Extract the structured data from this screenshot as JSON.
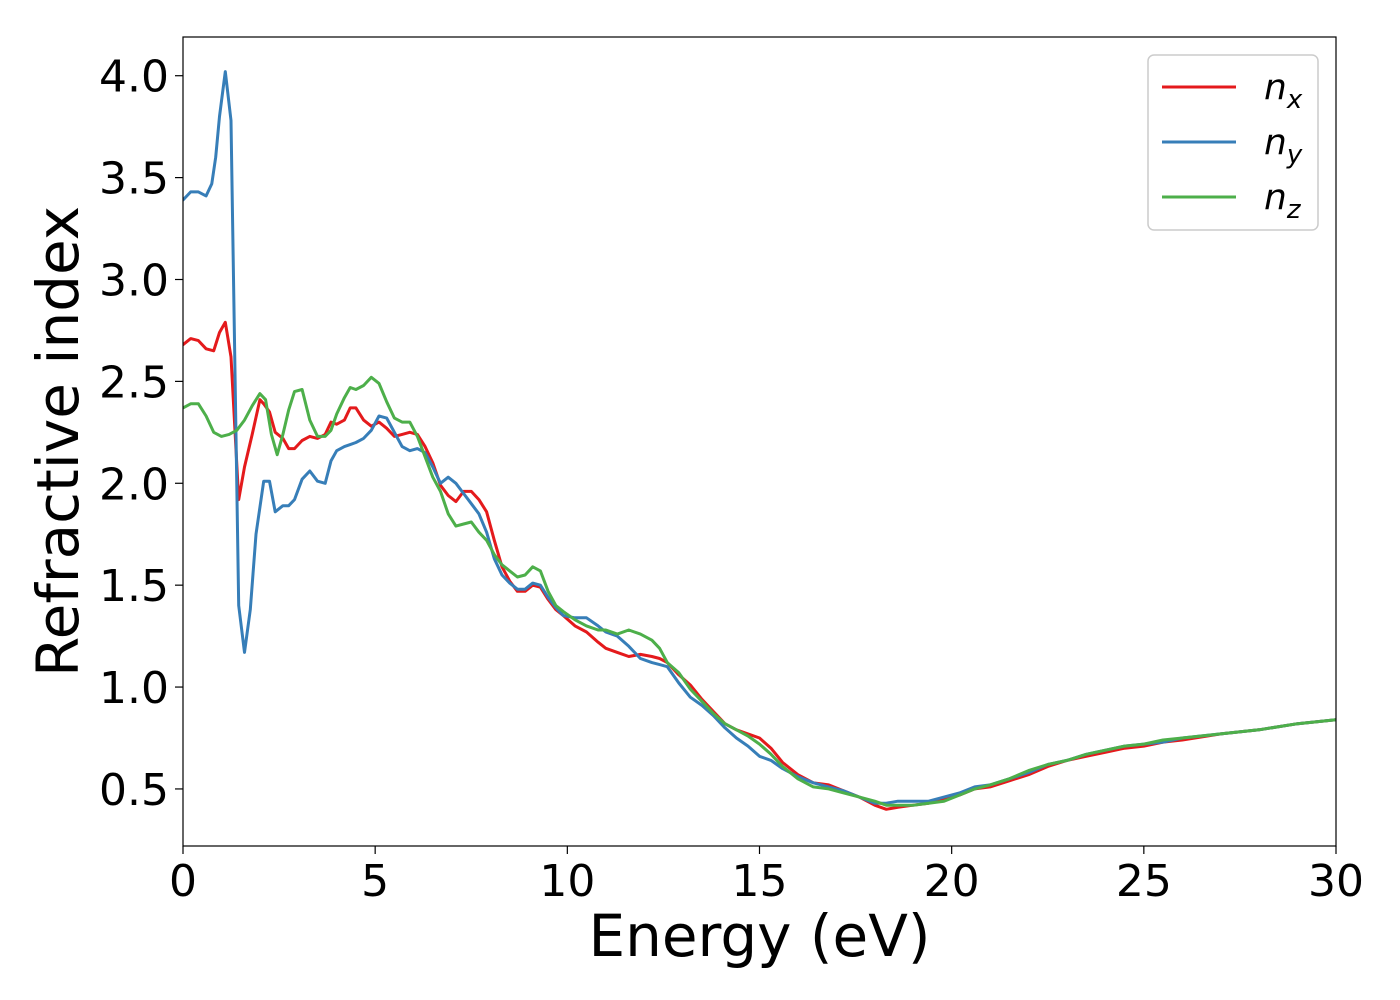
{
  "chart_data": {
    "type": "line",
    "title": "",
    "xlabel": "Energy (eV)",
    "ylabel": "Refractive index",
    "xlim": [
      0,
      30
    ],
    "ylim": [
      0.22,
      4.19
    ],
    "xticks": [
      "0",
      "5",
      "10",
      "15",
      "20",
      "25",
      "30"
    ],
    "yticks": [
      "0.5",
      "1.0",
      "1.5",
      "2.0",
      "2.5",
      "3.0",
      "3.5",
      "4.0"
    ],
    "grid": false,
    "legend_position": "top-right",
    "series": [
      {
        "name": "n",
        "subscript": "x",
        "color": "#e41a1c",
        "x": [
          0,
          0.2,
          0.4,
          0.6,
          0.8,
          0.95,
          1.1,
          1.25,
          1.45,
          1.6,
          1.8,
          2.0,
          2.1,
          2.25,
          2.4,
          2.6,
          2.75,
          2.9,
          3.1,
          3.3,
          3.5,
          3.7,
          3.85,
          4.0,
          4.2,
          4.35,
          4.5,
          4.7,
          4.9,
          5.1,
          5.3,
          5.5,
          5.7,
          5.9,
          6.1,
          6.3,
          6.5,
          6.7,
          6.9,
          7.1,
          7.3,
          7.5,
          7.7,
          7.9,
          8.1,
          8.3,
          8.5,
          8.7,
          8.9,
          9.1,
          9.3,
          9.5,
          9.7,
          9.9,
          10.2,
          10.5,
          10.8,
          11.0,
          11.3,
          11.6,
          11.9,
          12.2,
          12.4,
          12.6,
          12.9,
          13.2,
          13.5,
          13.8,
          14.1,
          14.4,
          14.7,
          15.0,
          15.3,
          15.6,
          16.0,
          16.4,
          16.8,
          17.2,
          17.6,
          18.0,
          18.3,
          18.6,
          19.0,
          19.4,
          19.8,
          20.2,
          20.6,
          21.0,
          21.5,
          22.0,
          22.5,
          23.0,
          23.5,
          24.0,
          24.5,
          25.0,
          25.5,
          26.0,
          27.0,
          28.0,
          29.0,
          30.0
        ],
        "values": [
          2.68,
          2.71,
          2.7,
          2.66,
          2.65,
          2.74,
          2.79,
          2.62,
          1.92,
          2.08,
          2.24,
          2.41,
          2.39,
          2.35,
          2.25,
          2.22,
          2.17,
          2.17,
          2.21,
          2.23,
          2.22,
          2.24,
          2.3,
          2.29,
          2.31,
          2.37,
          2.37,
          2.31,
          2.28,
          2.3,
          2.27,
          2.23,
          2.24,
          2.25,
          2.24,
          2.18,
          2.1,
          1.99,
          1.94,
          1.91,
          1.96,
          1.96,
          1.92,
          1.86,
          1.72,
          1.59,
          1.52,
          1.47,
          1.47,
          1.5,
          1.49,
          1.43,
          1.38,
          1.35,
          1.3,
          1.27,
          1.22,
          1.19,
          1.17,
          1.15,
          1.16,
          1.15,
          1.14,
          1.12,
          1.06,
          1.01,
          0.94,
          0.88,
          0.82,
          0.79,
          0.77,
          0.75,
          0.7,
          0.63,
          0.57,
          0.53,
          0.52,
          0.49,
          0.46,
          0.42,
          0.4,
          0.41,
          0.42,
          0.43,
          0.45,
          0.47,
          0.5,
          0.51,
          0.54,
          0.57,
          0.61,
          0.64,
          0.66,
          0.68,
          0.7,
          0.71,
          0.73,
          0.74,
          0.77,
          0.79,
          0.82,
          0.84
        ]
      },
      {
        "name": "n",
        "subscript": "y",
        "color": "#377eb8",
        "x": [
          0,
          0.2,
          0.4,
          0.6,
          0.75,
          0.85,
          0.95,
          1.1,
          1.25,
          1.45,
          1.6,
          1.75,
          1.9,
          2.1,
          2.25,
          2.4,
          2.6,
          2.75,
          2.9,
          3.1,
          3.3,
          3.5,
          3.7,
          3.85,
          4.0,
          4.2,
          4.35,
          4.5,
          4.7,
          4.9,
          5.1,
          5.3,
          5.5,
          5.7,
          5.9,
          6.1,
          6.3,
          6.5,
          6.7,
          6.9,
          7.1,
          7.3,
          7.5,
          7.7,
          7.9,
          8.1,
          8.3,
          8.5,
          8.7,
          8.9,
          9.1,
          9.3,
          9.5,
          9.7,
          9.9,
          10.2,
          10.5,
          10.8,
          11.0,
          11.3,
          11.6,
          11.9,
          12.2,
          12.4,
          12.6,
          12.9,
          13.2,
          13.5,
          13.8,
          14.1,
          14.4,
          14.7,
          15.0,
          15.3,
          15.6,
          16.0,
          16.4,
          16.8,
          17.2,
          17.6,
          18.0,
          18.3,
          18.6,
          19.0,
          19.4,
          19.8,
          20.2,
          20.6,
          21.0,
          21.5,
          22.0,
          22.5,
          23.0,
          23.5,
          24.0,
          24.5,
          25.0,
          25.5,
          26.0,
          27.0,
          28.0,
          29.0,
          30.0
        ],
        "values": [
          3.39,
          3.43,
          3.43,
          3.41,
          3.47,
          3.6,
          3.8,
          4.02,
          3.78,
          1.4,
          1.17,
          1.38,
          1.75,
          2.01,
          2.01,
          1.86,
          1.89,
          1.89,
          1.92,
          2.02,
          2.06,
          2.01,
          2.0,
          2.11,
          2.16,
          2.18,
          2.19,
          2.2,
          2.22,
          2.26,
          2.33,
          2.32,
          2.25,
          2.18,
          2.16,
          2.17,
          2.15,
          2.08,
          2.0,
          2.03,
          2.0,
          1.95,
          1.9,
          1.85,
          1.76,
          1.63,
          1.55,
          1.51,
          1.48,
          1.48,
          1.51,
          1.5,
          1.44,
          1.39,
          1.35,
          1.34,
          1.34,
          1.3,
          1.27,
          1.25,
          1.2,
          1.14,
          1.12,
          1.11,
          1.1,
          1.02,
          0.95,
          0.91,
          0.86,
          0.8,
          0.75,
          0.71,
          0.66,
          0.64,
          0.6,
          0.56,
          0.53,
          0.51,
          0.49,
          0.46,
          0.43,
          0.43,
          0.44,
          0.44,
          0.44,
          0.46,
          0.48,
          0.51,
          0.52,
          0.55,
          0.58,
          0.62,
          0.64,
          0.67,
          0.69,
          0.71,
          0.72,
          0.73,
          0.75,
          0.77,
          0.79,
          0.82,
          0.84
        ]
      },
      {
        "name": "n",
        "subscript": "z",
        "color": "#4daf4a",
        "x": [
          0,
          0.2,
          0.4,
          0.6,
          0.8,
          1.0,
          1.2,
          1.4,
          1.6,
          1.8,
          2.0,
          2.15,
          2.3,
          2.45,
          2.6,
          2.75,
          2.9,
          3.1,
          3.3,
          3.5,
          3.7,
          3.85,
          4.0,
          4.2,
          4.35,
          4.5,
          4.7,
          4.9,
          5.1,
          5.3,
          5.5,
          5.7,
          5.9,
          6.1,
          6.3,
          6.5,
          6.7,
          6.9,
          7.1,
          7.3,
          7.5,
          7.7,
          7.9,
          8.1,
          8.3,
          8.5,
          8.7,
          8.9,
          9.1,
          9.3,
          9.5,
          9.7,
          9.9,
          10.2,
          10.5,
          10.8,
          11.0,
          11.3,
          11.6,
          11.9,
          12.2,
          12.4,
          12.6,
          12.9,
          13.2,
          13.5,
          13.8,
          14.1,
          14.4,
          14.7,
          15.0,
          15.3,
          15.6,
          16.0,
          16.4,
          16.8,
          17.2,
          17.6,
          18.0,
          18.3,
          18.6,
          19.0,
          19.4,
          19.8,
          20.2,
          20.6,
          21.0,
          21.5,
          22.0,
          22.5,
          23.0,
          23.5,
          24.0,
          24.5,
          25.0,
          25.5,
          26.0,
          27.0,
          28.0,
          29.0,
          30.0
        ],
        "values": [
          2.37,
          2.39,
          2.39,
          2.33,
          2.25,
          2.23,
          2.24,
          2.26,
          2.31,
          2.38,
          2.44,
          2.41,
          2.24,
          2.14,
          2.24,
          2.36,
          2.45,
          2.46,
          2.31,
          2.23,
          2.23,
          2.26,
          2.34,
          2.42,
          2.47,
          2.46,
          2.48,
          2.52,
          2.49,
          2.4,
          2.32,
          2.3,
          2.3,
          2.23,
          2.13,
          2.03,
          1.96,
          1.85,
          1.79,
          1.8,
          1.81,
          1.76,
          1.72,
          1.65,
          1.6,
          1.57,
          1.54,
          1.55,
          1.59,
          1.57,
          1.47,
          1.4,
          1.37,
          1.33,
          1.3,
          1.28,
          1.28,
          1.26,
          1.28,
          1.26,
          1.23,
          1.19,
          1.12,
          1.07,
          0.99,
          0.93,
          0.87,
          0.82,
          0.79,
          0.76,
          0.72,
          0.67,
          0.61,
          0.55,
          0.51,
          0.5,
          0.48,
          0.46,
          0.44,
          0.42,
          0.42,
          0.42,
          0.43,
          0.44,
          0.47,
          0.5,
          0.52,
          0.55,
          0.59,
          0.62,
          0.64,
          0.67,
          0.69,
          0.71,
          0.72,
          0.74,
          0.75,
          0.77,
          0.79,
          0.82,
          0.84
        ]
      }
    ]
  }
}
